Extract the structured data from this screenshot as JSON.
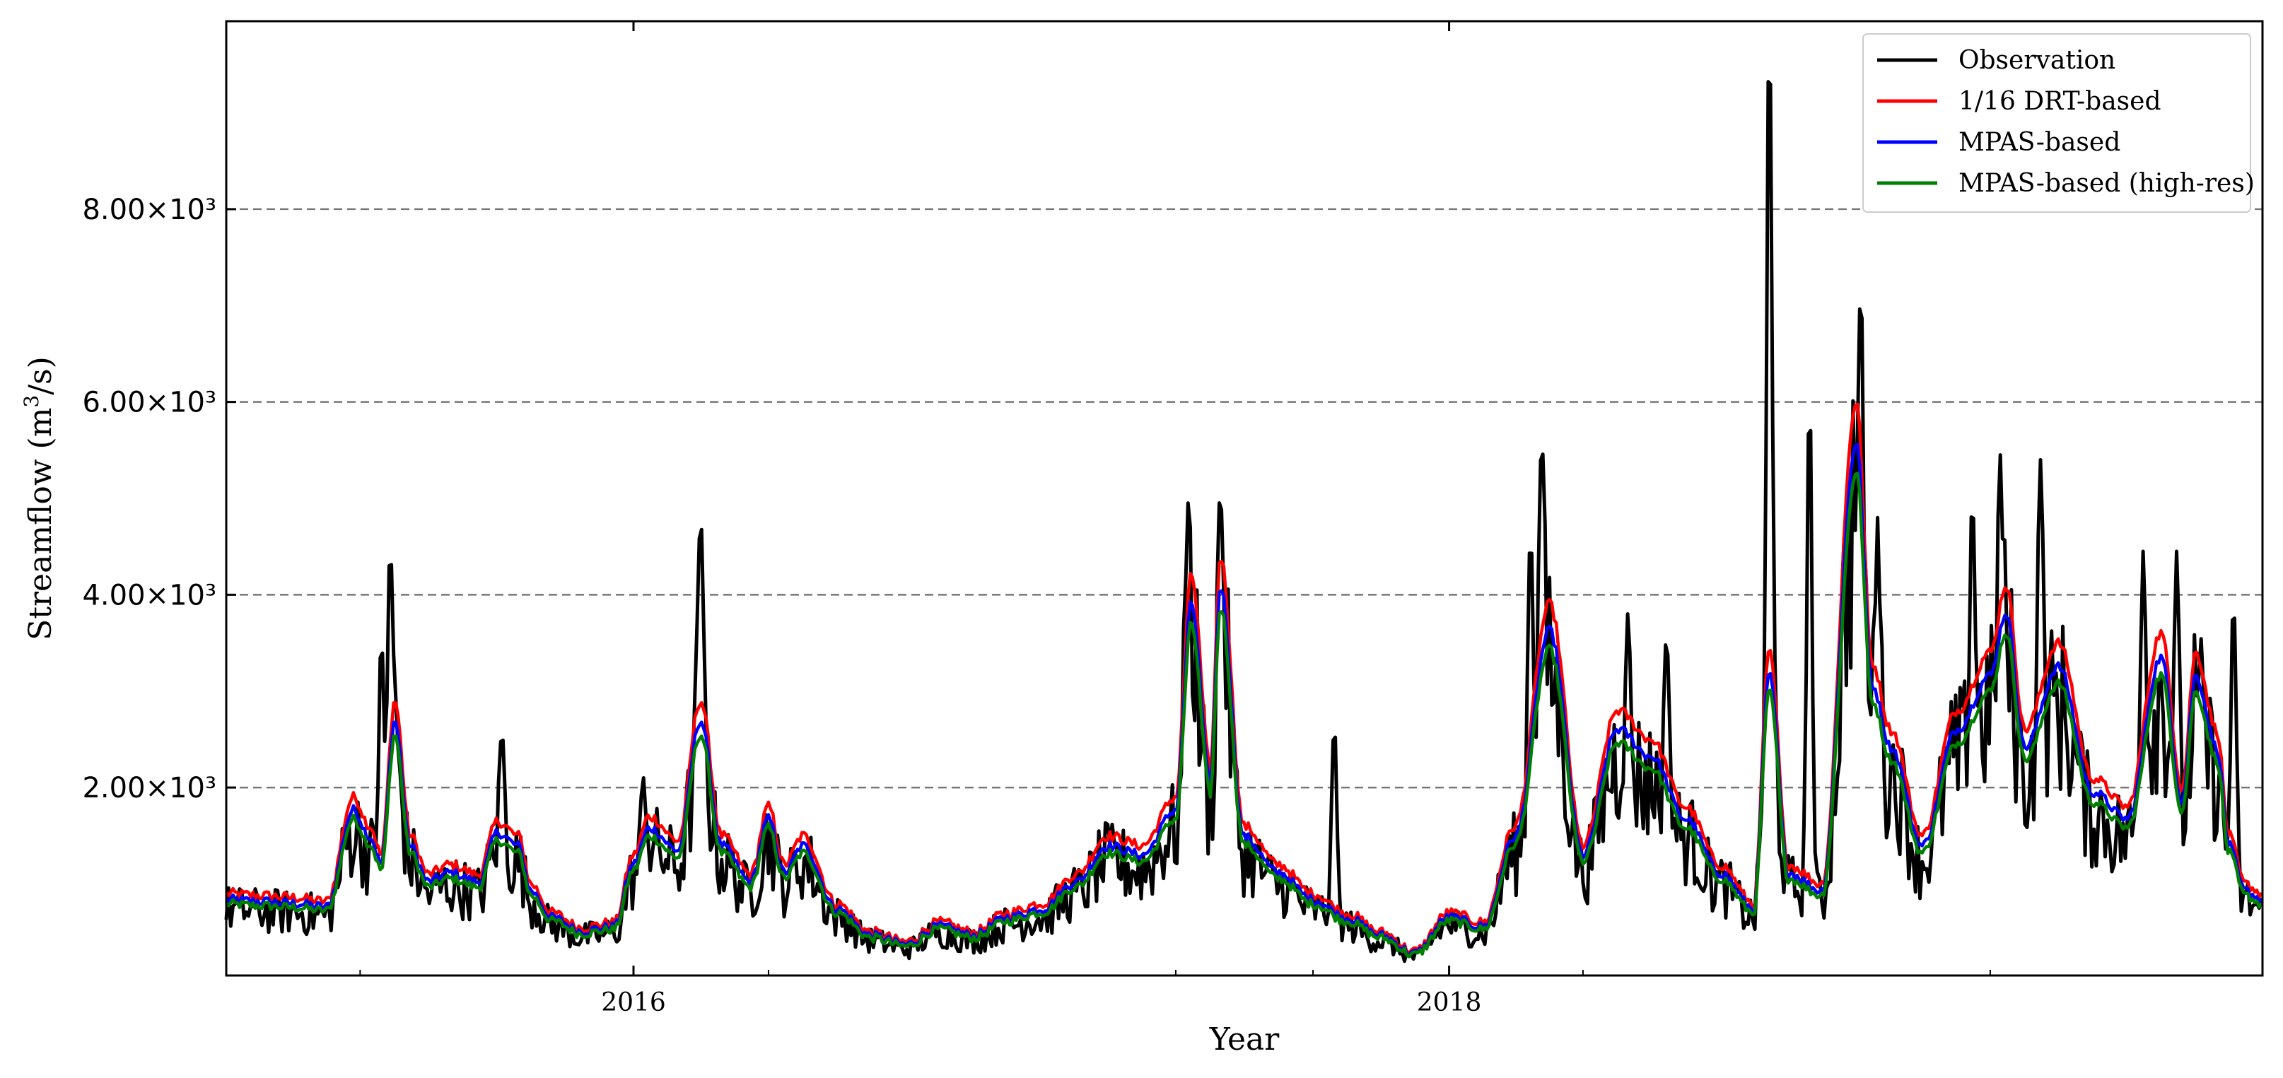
{
  "chart_data": {
    "type": "line",
    "xlabel": "Year",
    "ylabel_main": "Streamflow (m",
    "ylabel_sup": "3",
    "ylabel_tail": "/s)",
    "x_range": [
      "2015-01-01",
      "2019-12-31"
    ],
    "ylim": [
      50,
      9950
    ],
    "x_ticks": [
      {
        "date": "2016-01-01",
        "label": "2016"
      },
      {
        "date": "2018-01-01",
        "label": "2018"
      }
    ],
    "x_minor_ticks": [
      "2015-05-01",
      "2016-05-01",
      "2017-05-01",
      "2017-09-01",
      "2018-05-01",
      "2019-05-01"
    ],
    "y_ticks": [
      {
        "value": 2000,
        "label": "2.00×10³"
      },
      {
        "value": 4000,
        "label": "4.00×10³"
      },
      {
        "value": 6000,
        "label": "6.00×10³"
      },
      {
        "value": 8000,
        "label": "8.00×10³"
      }
    ],
    "grid": "horizontal-dashed",
    "legend_position": "top-right",
    "series": [
      {
        "name": "Observation",
        "color": "#000000",
        "style": "noisy"
      },
      {
        "name": "1/16 DRT-based",
        "color": "#ff0000",
        "scale": 1.0
      },
      {
        "name": "MPAS-based",
        "color": "#0000ff",
        "scale": 0.93
      },
      {
        "name": "MPAS-based (high-res)",
        "color": "#008000",
        "scale": 0.88
      }
    ],
    "simulated_anchor_points": [
      [
        "2015-01-01",
        900
      ],
      [
        "2015-02-01",
        880
      ],
      [
        "2015-03-01",
        860
      ],
      [
        "2015-04-01",
        820
      ],
      [
        "2015-04-25",
        1900
      ],
      [
        "2015-05-10",
        1600
      ],
      [
        "2015-05-20",
        1300
      ],
      [
        "2015-06-01",
        2900
      ],
      [
        "2015-06-15",
        1500
      ],
      [
        "2015-07-01",
        1100
      ],
      [
        "2015-07-20",
        1200
      ],
      [
        "2015-08-15",
        1100
      ],
      [
        "2015-09-01",
        1650
      ],
      [
        "2015-09-20",
        1500
      ],
      [
        "2015-10-01",
        1000
      ],
      [
        "2015-10-20",
        700
      ],
      [
        "2015-11-15",
        550
      ],
      [
        "2015-12-15",
        600
      ],
      [
        "2016-01-01",
        1300
      ],
      [
        "2016-01-15",
        1700
      ],
      [
        "2016-02-10",
        1450
      ],
      [
        "2016-03-01",
        2900
      ],
      [
        "2016-03-20",
        1500
      ],
      [
        "2016-04-15",
        1100
      ],
      [
        "2016-05-01",
        1800
      ],
      [
        "2016-05-15",
        1200
      ],
      [
        "2016-06-01",
        1500
      ],
      [
        "2016-07-01",
        800
      ],
      [
        "2016-08-01",
        500
      ],
      [
        "2016-09-01",
        400
      ],
      [
        "2016-10-01",
        600
      ],
      [
        "2016-11-01",
        500
      ],
      [
        "2016-12-01",
        700
      ],
      [
        "2017-01-01",
        800
      ],
      [
        "2017-02-01",
        1100
      ],
      [
        "2017-03-01",
        1500
      ],
      [
        "2017-04-01",
        1400
      ],
      [
        "2017-05-01",
        1900
      ],
      [
        "2017-05-15",
        4200
      ],
      [
        "2017-06-01",
        2200
      ],
      [
        "2017-06-10",
        4400
      ],
      [
        "2017-07-01",
        1600
      ],
      [
        "2017-08-01",
        1200
      ],
      [
        "2017-09-01",
        900
      ],
      [
        "2017-10-01",
        700
      ],
      [
        "2017-11-01",
        500
      ],
      [
        "2017-12-01",
        300
      ],
      [
        "2018-01-01",
        700
      ],
      [
        "2018-02-01",
        600
      ],
      [
        "2018-03-01",
        1600
      ],
      [
        "2018-04-01",
        3900
      ],
      [
        "2018-05-01",
        1400
      ],
      [
        "2018-06-01",
        2800
      ],
      [
        "2018-07-01",
        2500
      ],
      [
        "2018-08-01",
        1800
      ],
      [
        "2018-09-01",
        1200
      ],
      [
        "2018-10-01",
        800
      ],
      [
        "2018-10-15",
        3400
      ],
      [
        "2018-11-01",
        1200
      ],
      [
        "2018-12-01",
        1000
      ],
      [
        "2019-01-01",
        6000
      ],
      [
        "2019-01-15",
        3300
      ],
      [
        "2019-02-01",
        2600
      ],
      [
        "2019-03-01",
        1500
      ],
      [
        "2019-04-01",
        2800
      ],
      [
        "2019-05-01",
        3400
      ],
      [
        "2019-05-15",
        4100
      ],
      [
        "2019-06-01",
        2600
      ],
      [
        "2019-07-01",
        3500
      ],
      [
        "2019-08-01",
        2100
      ],
      [
        "2019-09-01",
        1800
      ],
      [
        "2019-10-01",
        3600
      ],
      [
        "2019-10-20",
        2000
      ],
      [
        "2019-11-01",
        3400
      ],
      [
        "2019-11-20",
        2600
      ],
      [
        "2019-12-01",
        1500
      ],
      [
        "2019-12-15",
        1000
      ],
      [
        "2019-12-31",
        900
      ]
    ],
    "observation_peaks": [
      [
        "2015-05-20",
        3600
      ],
      [
        "2015-05-28",
        4550
      ],
      [
        "2015-09-05",
        2600
      ],
      [
        "2016-03-01",
        4850
      ],
      [
        "2016-01-10",
        2100
      ],
      [
        "2017-05-12",
        4950
      ],
      [
        "2017-06-10",
        5050
      ],
      [
        "2017-09-20",
        2700
      ],
      [
        "2018-03-15",
        4700
      ],
      [
        "2018-03-25",
        5700
      ],
      [
        "2018-06-10",
        3800
      ],
      [
        "2018-07-15",
        3600
      ],
      [
        "2018-10-15",
        9950
      ],
      [
        "2018-11-20",
        6200
      ],
      [
        "2019-01-05",
        7050
      ],
      [
        "2019-01-20",
        4800
      ],
      [
        "2019-04-15",
        5050
      ],
      [
        "2019-05-10",
        5450
      ],
      [
        "2019-06-15",
        5400
      ],
      [
        "2019-09-15",
        4450
      ],
      [
        "2019-10-15",
        4450
      ],
      [
        "2019-12-05",
        4000
      ]
    ]
  }
}
